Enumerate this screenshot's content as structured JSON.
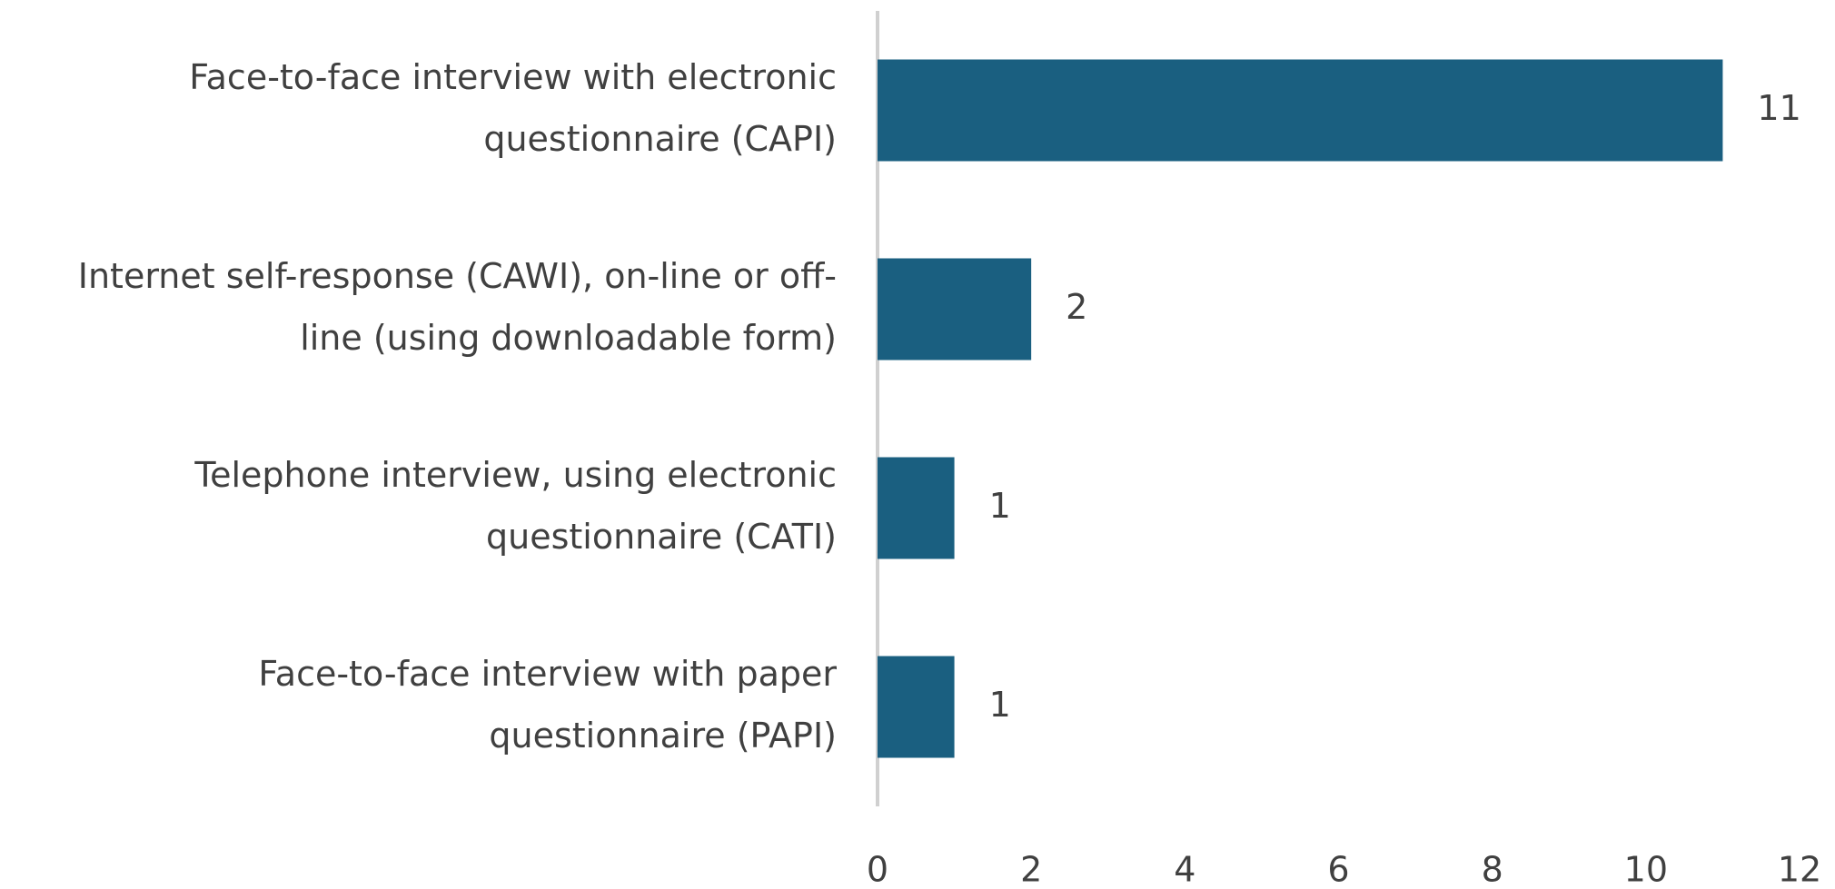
{
  "chart_data": {
    "type": "barh",
    "categories": [
      [
        "Face-to-face interview with electronic",
        "questionnaire (CAPI)"
      ],
      [
        "Internet self-response (CAWI), on-line or off-",
        "line (using downloadable form)"
      ],
      [
        "Telephone interview, using electronic",
        "questionnaire (CATI)"
      ],
      [
        "Face-to-face interview with paper",
        "questionnaire (PAPI)"
      ]
    ],
    "values": [
      11,
      2,
      1,
      1
    ],
    "color": "#1a5f80",
    "xlim": [
      0,
      12
    ],
    "xticks": [
      0,
      2,
      4,
      6,
      8,
      10,
      12
    ],
    "grid": false
  }
}
